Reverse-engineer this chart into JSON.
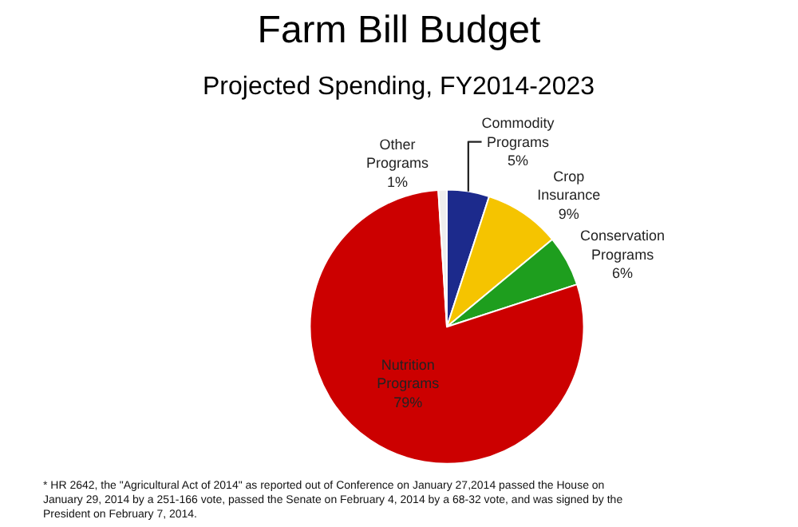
{
  "chart_data": {
    "type": "pie",
    "title": "Farm Bill Budget",
    "subtitle": "Projected Spending, FY2014-2023",
    "categories": [
      "Commodity Programs",
      "Crop Insurance",
      "Conservation Programs",
      "Nutrition Programs",
      "Other Programs"
    ],
    "values": [
      5,
      9,
      6,
      79,
      1
    ],
    "colors": [
      "#1c2a8c",
      "#f5c400",
      "#1e9e1e",
      "#cc0000",
      "#eeeeee"
    ],
    "legend": false,
    "value_labels": [
      "5%",
      "9%",
      "6%",
      "79%",
      "1%"
    ],
    "annotations": [
      "* HR 2642, the \"Agricultural Act of 2014\" as reported out of Conference on January 27,2014 passed the House on January 29, 2014 by a 251-166 vote, passed the Senate on February 4, 2014 by a 68-32 vote, and was signed by the President on February 7, 2014."
    ]
  }
}
